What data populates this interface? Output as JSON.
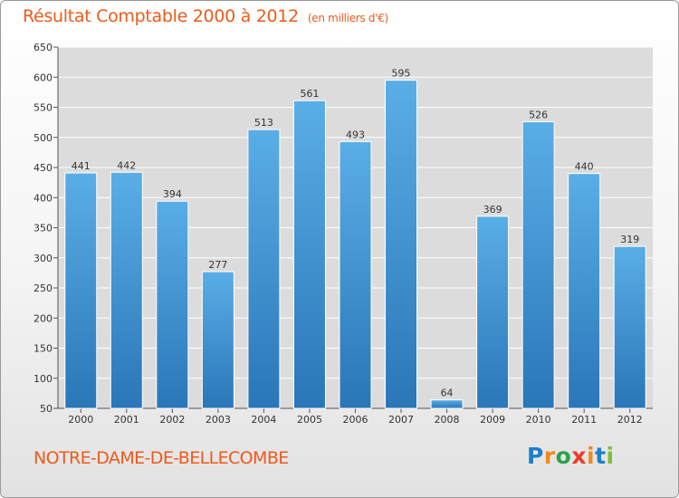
{
  "header": {
    "title": "Résultat Comptable 2000 à 2012",
    "subtitle": "(en milliers d'€)"
  },
  "footer": {
    "commune": "NOTRE-DAME-DE-BELLECOMBE",
    "logo_letters": [
      "P",
      "r",
      "o",
      "x",
      "i",
      "t",
      "i"
    ],
    "logo_colors": [
      "#1e7fc8",
      "#f08a1e",
      "#2aa34a",
      "#e83c2a",
      "#f08a1e",
      "#1e7fc8",
      "#7abf3a"
    ]
  },
  "colors": {
    "bar": "#3d8fd0",
    "title": "#ee5a1a",
    "grid": "#ffffff",
    "plot_background": "#dcdcdc"
  },
  "chart_data": {
    "type": "bar",
    "title": "Résultat Comptable 2000 à 2012",
    "subtitle": "(en milliers d'€)",
    "xlabel": "",
    "ylabel": "",
    "categories": [
      "2000",
      "2001",
      "2002",
      "2003",
      "2004",
      "2005",
      "2006",
      "2007",
      "2008",
      "2009",
      "2010",
      "2011",
      "2012"
    ],
    "values": [
      441,
      442,
      394,
      277,
      513,
      561,
      493,
      595,
      64,
      369,
      526,
      440,
      319
    ],
    "ylim": [
      50,
      650
    ],
    "yticks": [
      50,
      100,
      150,
      200,
      250,
      300,
      350,
      400,
      450,
      500,
      550,
      600,
      650
    ],
    "grid": true,
    "legend": "none"
  }
}
